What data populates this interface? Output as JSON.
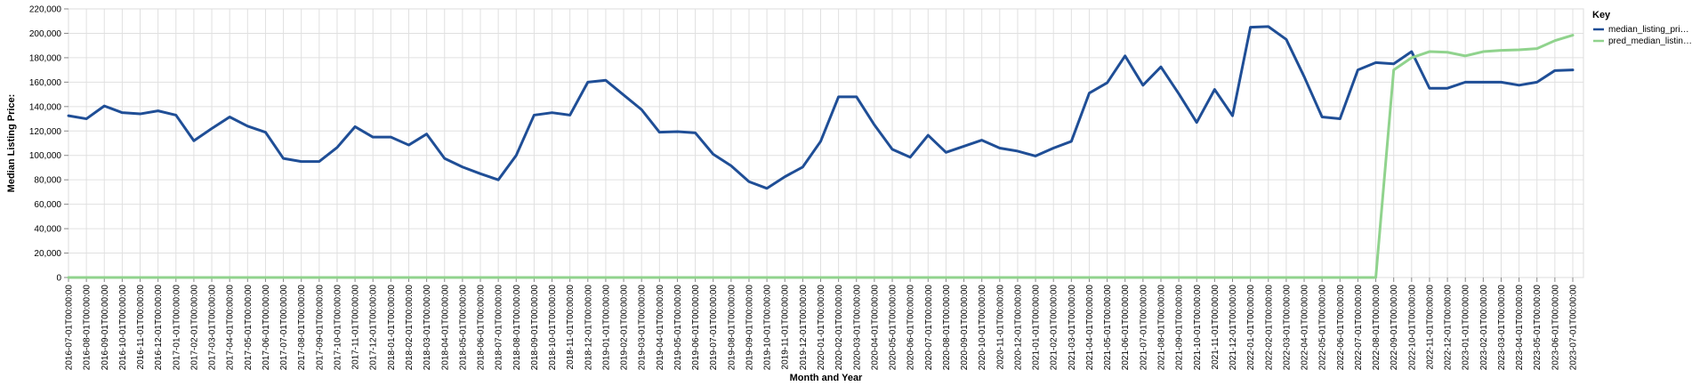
{
  "chart_data": {
    "type": "line",
    "xlabel": "Month and Year",
    "ylabel": "Median Listing Price:",
    "ylim": [
      0,
      220000
    ],
    "yticks": [
      0,
      20000,
      40000,
      60000,
      80000,
      100000,
      120000,
      140000,
      160000,
      180000,
      200000,
      220000
    ],
    "ytick_labels": [
      "0",
      "20,000",
      "40,000",
      "60,000",
      "80,000",
      "100,000",
      "120,000",
      "140,000",
      "160,000",
      "180,000",
      "200,000",
      "220,000"
    ],
    "grid": true,
    "legend": {
      "title": "Key",
      "position": "right"
    },
    "categories": [
      "2016-07-01T00:00:00",
      "2016-08-01T00:00:00",
      "2016-09-01T00:00:00",
      "2016-10-01T00:00:00",
      "2016-11-01T00:00:00",
      "2016-12-01T00:00:00",
      "2017-01-01T00:00:00",
      "2017-02-01T00:00:00",
      "2017-03-01T00:00:00",
      "2017-04-01T00:00:00",
      "2017-05-01T00:00:00",
      "2017-06-01T00:00:00",
      "2017-07-01T00:00:00",
      "2017-08-01T00:00:00",
      "2017-09-01T00:00:00",
      "2017-10-01T00:00:00",
      "2017-11-01T00:00:00",
      "2017-12-01T00:00:00",
      "2018-01-01T00:00:00",
      "2018-02-01T00:00:00",
      "2018-03-01T00:00:00",
      "2018-04-01T00:00:00",
      "2018-05-01T00:00:00",
      "2018-06-01T00:00:00",
      "2018-07-01T00:00:00",
      "2018-08-01T00:00:00",
      "2018-09-01T00:00:00",
      "2018-10-01T00:00:00",
      "2018-11-01T00:00:00",
      "2018-12-01T00:00:00",
      "2019-01-01T00:00:00",
      "2019-02-01T00:00:00",
      "2019-03-01T00:00:00",
      "2019-04-01T00:00:00",
      "2019-05-01T00:00:00",
      "2019-06-01T00:00:00",
      "2019-07-01T00:00:00",
      "2019-08-01T00:00:00",
      "2019-09-01T00:00:00",
      "2019-10-01T00:00:00",
      "2019-11-01T00:00:00",
      "2019-12-01T00:00:00",
      "2020-01-01T00:00:00",
      "2020-02-01T00:00:00",
      "2020-03-01T00:00:00",
      "2020-04-01T00:00:00",
      "2020-05-01T00:00:00",
      "2020-06-01T00:00:00",
      "2020-07-01T00:00:00",
      "2020-08-01T00:00:00",
      "2020-09-01T00:00:00",
      "2020-10-01T00:00:00",
      "2020-11-01T00:00:00",
      "2020-12-01T00:00:00",
      "2021-01-01T00:00:00",
      "2021-02-01T00:00:00",
      "2021-03-01T00:00:00",
      "2021-04-01T00:00:00",
      "2021-05-01T00:00:00",
      "2021-06-01T00:00:00",
      "2021-07-01T00:00:00",
      "2021-08-01T00:00:00",
      "2021-09-01T00:00:00",
      "2021-10-01T00:00:00",
      "2021-11-01T00:00:00",
      "2021-12-01T00:00:00",
      "2022-01-01T00:00:00",
      "2022-02-01T00:00:00",
      "2022-03-01T00:00:00",
      "2022-04-01T00:00:00",
      "2022-05-01T00:00:00",
      "2022-06-01T00:00:00",
      "2022-07-01T00:00:00",
      "2022-08-01T00:00:00",
      "2022-09-01T00:00:00",
      "2022-10-01T00:00:00",
      "2022-11-01T00:00:00",
      "2022-12-01T00:00:00",
      "2023-01-01T00:00:00",
      "2023-02-01T00:00:00",
      "2023-03-01T00:00:00",
      "2023-04-01T00:00:00",
      "2023-05-01T00:00:00",
      "2023-06-01T00:00:00",
      "2023-07-01T00:00:00"
    ],
    "series": [
      {
        "name": "median_listing_pri…",
        "color": "#1f4e96",
        "values": [
          132500,
          130000,
          140500,
          135000,
          134000,
          136500,
          133000,
          112000,
          122000,
          131500,
          124000,
          119000,
          97500,
          95000,
          95000,
          106500,
          123500,
          115000,
          115000,
          108500,
          117500,
          97500,
          90500,
          85000,
          80000,
          100000,
          133000,
          135000,
          133000,
          160000,
          161500,
          149500,
          137500,
          119000,
          119500,
          118500,
          101000,
          91500,
          78500,
          73000,
          82500,
          90500,
          111500,
          148000,
          148000,
          125000,
          105000,
          98500,
          116500,
          102500,
          107500,
          112500,
          106000,
          103500,
          99500,
          106000,
          111500,
          151000,
          159500,
          181500,
          157500,
          172500,
          150500,
          127000,
          154000,
          132500,
          205000,
          205500,
          195000,
          164500,
          131500,
          130000,
          170000,
          176000,
          175000,
          185000,
          155000,
          155000,
          160000,
          160000,
          160000,
          157500,
          160000,
          169500,
          170000
        ]
      },
      {
        "name": "pred_median_listin…",
        "color": "#90d38d",
        "values": [
          0,
          0,
          0,
          0,
          0,
          0,
          0,
          0,
          0,
          0,
          0,
          0,
          0,
          0,
          0,
          0,
          0,
          0,
          0,
          0,
          0,
          0,
          0,
          0,
          0,
          0,
          0,
          0,
          0,
          0,
          0,
          0,
          0,
          0,
          0,
          0,
          0,
          0,
          0,
          0,
          0,
          0,
          0,
          0,
          0,
          0,
          0,
          0,
          0,
          0,
          0,
          0,
          0,
          0,
          0,
          0,
          0,
          0,
          0,
          0,
          0,
          0,
          0,
          0,
          0,
          0,
          0,
          0,
          0,
          0,
          0,
          0,
          0,
          0,
          170000,
          180000,
          185000,
          184500,
          181500,
          185000,
          186000,
          186500,
          187500,
          194000,
          198500
        ]
      }
    ]
  }
}
